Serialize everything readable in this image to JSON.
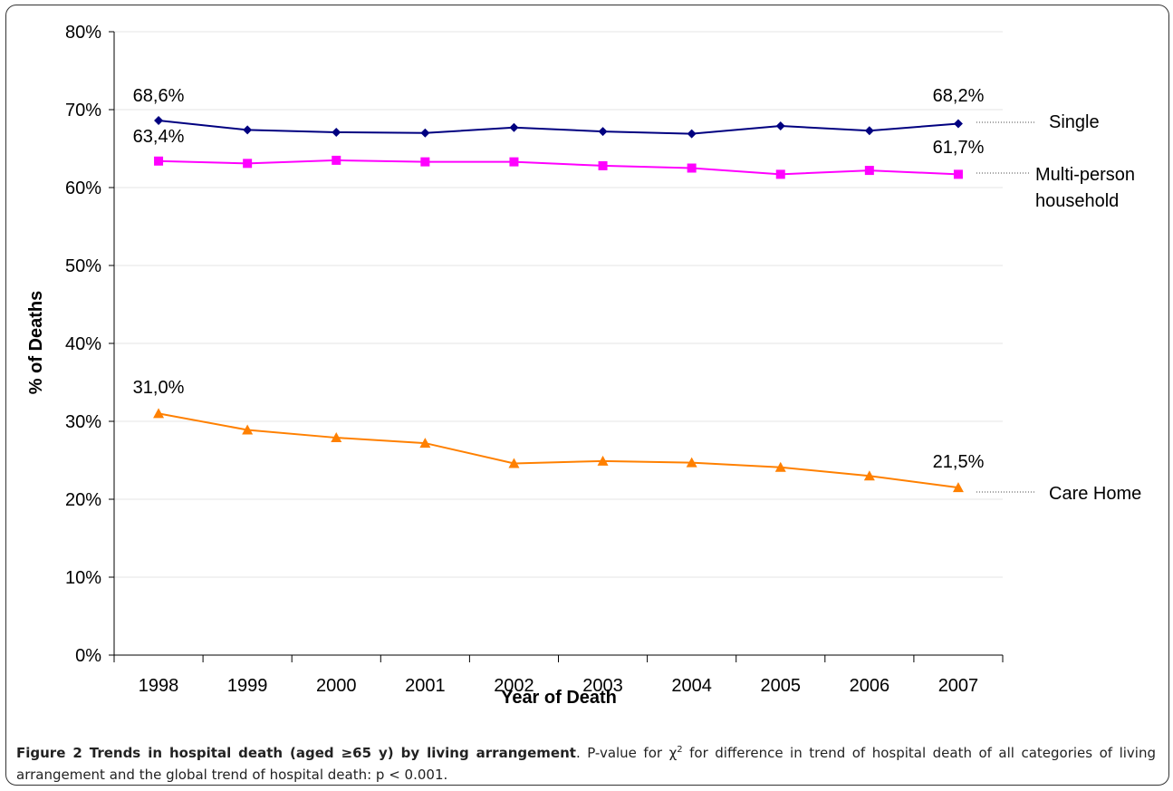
{
  "chart_data": {
    "type": "line",
    "categories": [
      "1998",
      "1999",
      "2000",
      "2001",
      "2002",
      "2003",
      "2004",
      "2005",
      "2006",
      "2007"
    ],
    "xlabel": "Year of Death",
    "ylabel": "% of Deaths",
    "ylim": [
      0,
      80
    ],
    "yticks": [
      "0%",
      "10%",
      "20%",
      "30%",
      "40%",
      "50%",
      "60%",
      "70%",
      "80%"
    ],
    "grid": true,
    "series": [
      {
        "name": "Single",
        "color": "#000080",
        "marker": "diamond",
        "values": [
          68.6,
          67.4,
          67.1,
          67.0,
          67.7,
          67.2,
          66.9,
          67.9,
          67.3,
          68.2
        ],
        "start_label": "68,6%",
        "end_label": "68,2%"
      },
      {
        "name": "Multi-person household",
        "color": "#ff00ff",
        "marker": "square",
        "values": [
          63.4,
          63.1,
          63.5,
          63.3,
          63.3,
          62.8,
          62.5,
          61.7,
          62.2,
          61.7
        ],
        "start_label": "63,4%",
        "end_label": "61,7%"
      },
      {
        "name": "Care Home",
        "color": "#ff8000",
        "marker": "triangle",
        "values": [
          31.0,
          28.9,
          27.9,
          27.2,
          24.6,
          24.9,
          24.7,
          24.1,
          23.0,
          21.5
        ],
        "start_label": "31,0%",
        "end_label": "21,5%"
      }
    ]
  },
  "legend": {
    "single": "Single",
    "multi_line1": "Multi-person",
    "multi_line2": "household",
    "care": "Care Home"
  },
  "caption": {
    "bold": "Figure 2 Trends in hospital death (aged ≥65 y) by living arrangement",
    "rest_a": ". P-value for ",
    "chi": "χ",
    "sup": "2",
    "rest_b": " for difference in trend of hospital death of all categories of living arrangement and the global trend of hospital death: p < 0.001."
  }
}
